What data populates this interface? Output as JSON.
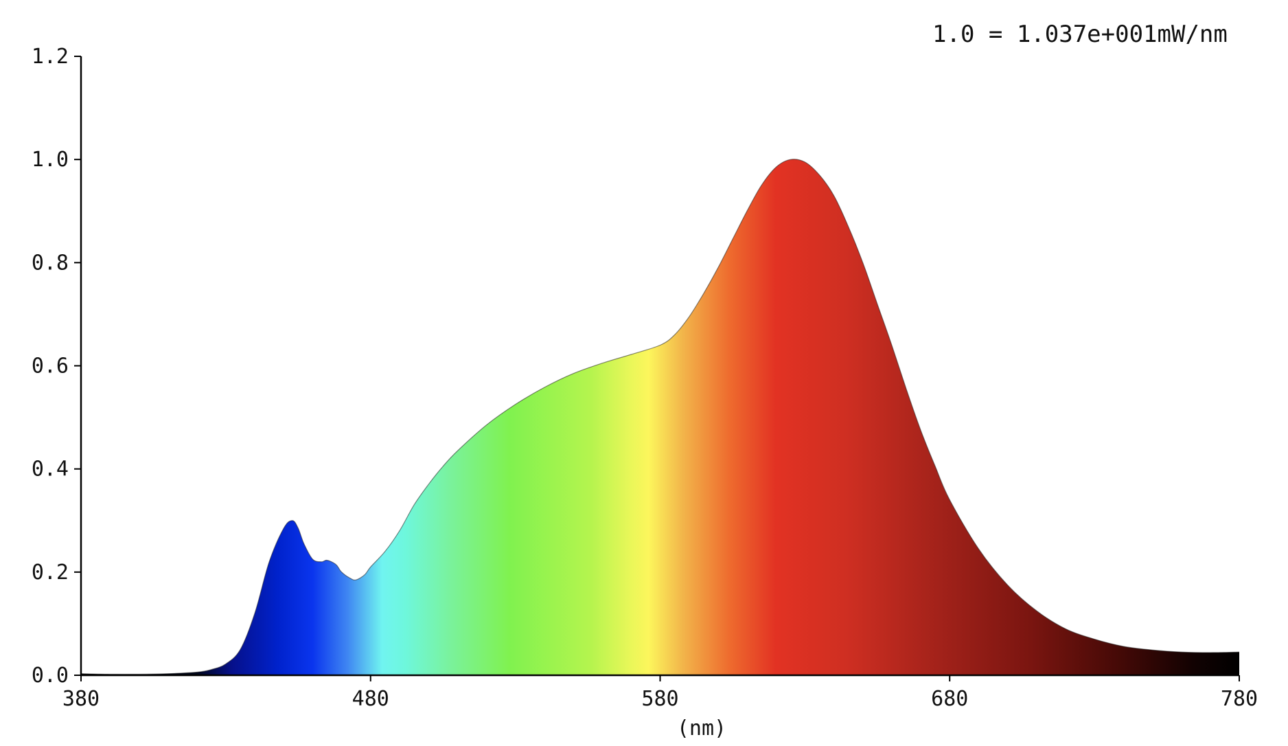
{
  "chart_data": {
    "type": "area",
    "title": "",
    "annotation": "1.0 = 1.037e+001mW/nm",
    "xlabel": "(nm)",
    "ylabel": "",
    "xlim": [
      380,
      780
    ],
    "ylim": [
      0,
      1.2
    ],
    "x_ticks": [
      380,
      480,
      580,
      680,
      780
    ],
    "x_tick_labels": [
      "380",
      "480",
      "580",
      "680",
      "780"
    ],
    "y_ticks": [
      0,
      0.2,
      0.4,
      0.6,
      0.8,
      1.0,
      1.2
    ],
    "y_tick_labels": [
      "0.0",
      "0.2",
      "0.4",
      "0.6",
      "0.8",
      "1.0",
      "1.2"
    ],
    "grid": false,
    "legend": "none",
    "fill": "visible-spectrum-gradient",
    "series": [
      {
        "x": [
          380,
          390,
          400,
          410,
          420,
          425,
          430,
          435,
          440,
          445,
          450,
          453,
          455,
          457,
          460,
          463,
          465,
          468,
          470,
          473,
          475,
          478,
          480,
          485,
          490,
          495,
          500,
          505,
          510,
          520,
          530,
          540,
          550,
          560,
          570,
          580,
          585,
          590,
          595,
          600,
          605,
          610,
          615,
          620,
          625,
          630,
          635,
          640,
          645,
          650,
          655,
          660,
          665,
          670,
          675,
          680,
          690,
          700,
          710,
          720,
          730,
          740,
          750,
          760,
          770,
          780
        ],
        "y": [
          0.003,
          0.002,
          0.002,
          0.003,
          0.006,
          0.011,
          0.022,
          0.05,
          0.12,
          0.22,
          0.285,
          0.3,
          0.285,
          0.255,
          0.225,
          0.22,
          0.223,
          0.215,
          0.2,
          0.188,
          0.185,
          0.195,
          0.21,
          0.24,
          0.28,
          0.33,
          0.37,
          0.405,
          0.435,
          0.485,
          0.525,
          0.558,
          0.585,
          0.605,
          0.622,
          0.64,
          0.66,
          0.695,
          0.74,
          0.79,
          0.845,
          0.9,
          0.95,
          0.985,
          1.0,
          0.995,
          0.97,
          0.93,
          0.87,
          0.8,
          0.72,
          0.64,
          0.555,
          0.475,
          0.405,
          0.34,
          0.245,
          0.175,
          0.125,
          0.09,
          0.07,
          0.056,
          0.049,
          0.045,
          0.044,
          0.045
        ]
      }
    ]
  }
}
